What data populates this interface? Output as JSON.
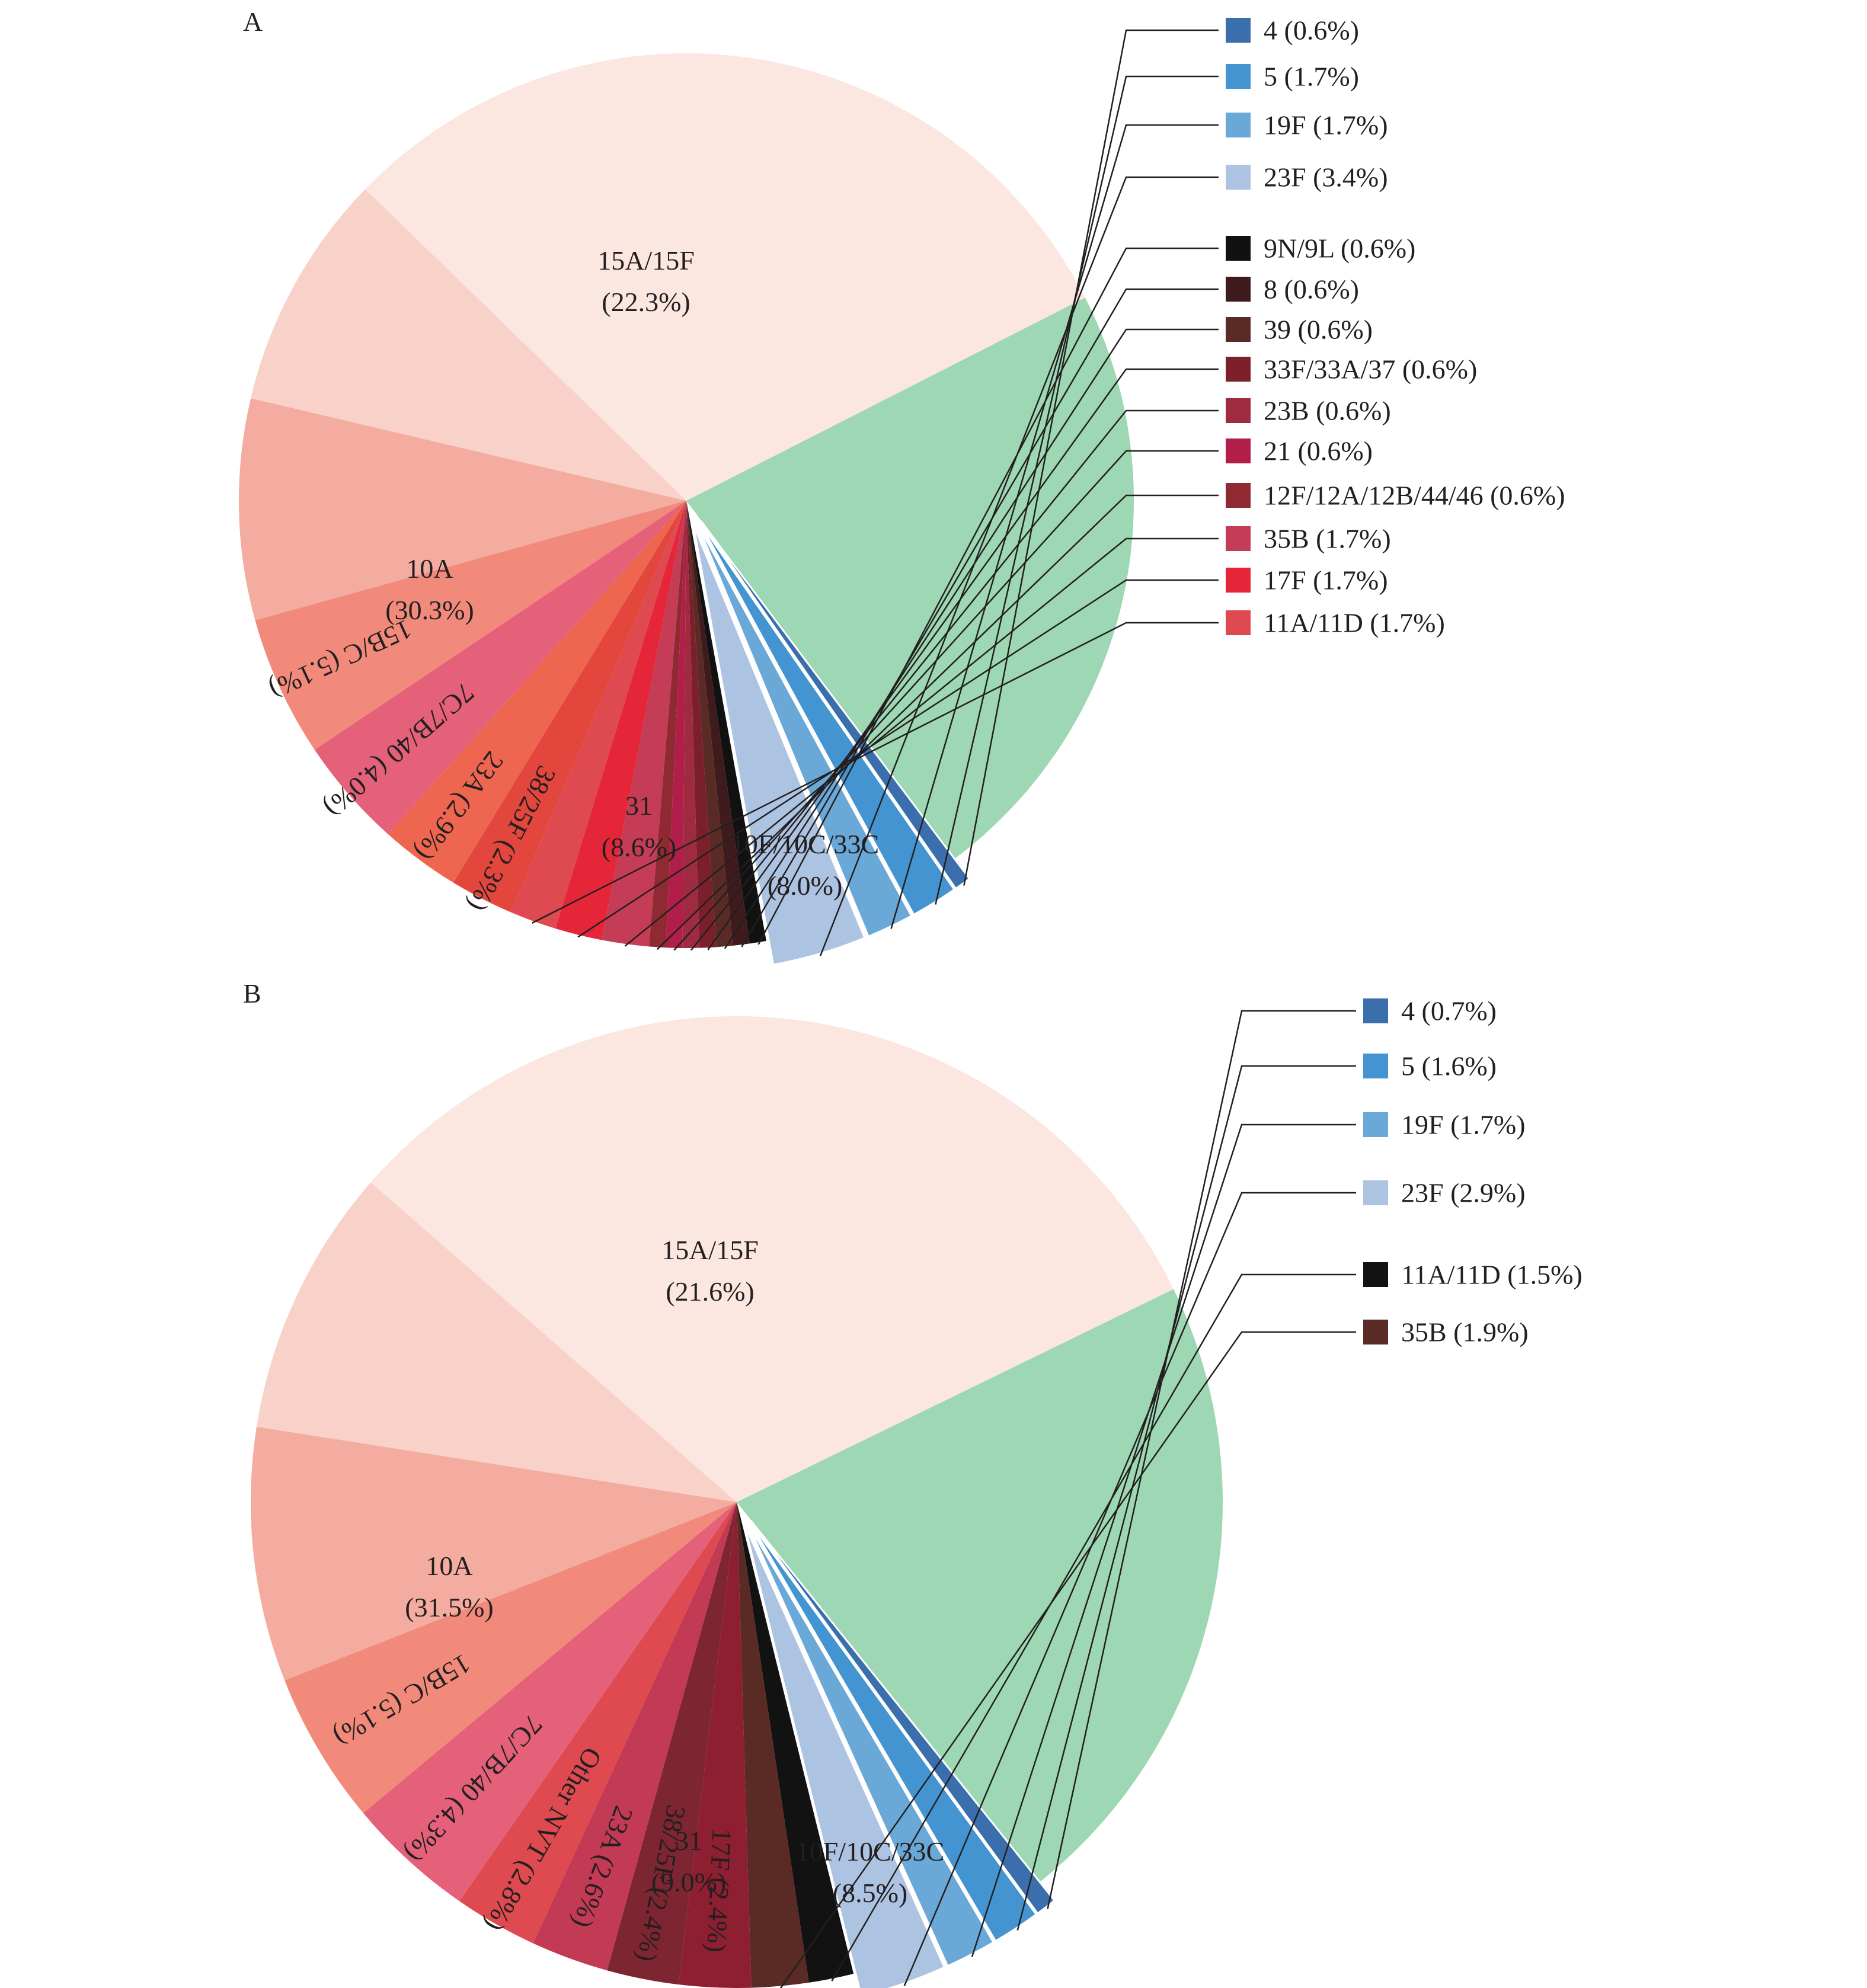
{
  "chart_data": [
    {
      "type": "pie",
      "panel": "A",
      "series": [
        {
          "name": "15A/15F",
          "value": 22.3,
          "label": "15A/15F",
          "pct": "(22.3%)",
          "color": "#9dd7b3",
          "placement": "inside"
        },
        {
          "name": "4",
          "value": 0.6,
          "label": "4 (0.6%)",
          "color": "#3a6ead",
          "placement": "legend",
          "explode": true
        },
        {
          "name": "5",
          "value": 1.7,
          "label": "5 (1.7%)",
          "color": "#4394d0",
          "placement": "legend",
          "explode": true
        },
        {
          "name": "19F",
          "value": 1.7,
          "label": "19F (1.7%)",
          "color": "#6aa8d8",
          "placement": "legend",
          "explode": true
        },
        {
          "name": "23F",
          "value": 3.4,
          "label": "23F (3.4%)",
          "color": "#adc3e2",
          "placement": "legend",
          "explode": true
        },
        {
          "name": "9N/9L",
          "value": 0.6,
          "label": "9N/9L (0.6%)",
          "color": "#111111",
          "placement": "legend"
        },
        {
          "name": "8",
          "value": 0.6,
          "label": "8 (0.6%)",
          "color": "#3f1b1d",
          "placement": "legend"
        },
        {
          "name": "39",
          "value": 0.6,
          "label": "39 (0.6%)",
          "color": "#5a2a25",
          "placement": "legend"
        },
        {
          "name": "33F/33A/37",
          "value": 0.6,
          "label": "33F/33A/37 (0.6%)",
          "color": "#7b1f2b",
          "placement": "legend"
        },
        {
          "name": "23B",
          "value": 0.6,
          "label": "23B (0.6%)",
          "color": "#9e2b3f",
          "placement": "legend"
        },
        {
          "name": "21",
          "value": 0.6,
          "label": "21 (0.6%)",
          "color": "#b21e4a",
          "placement": "legend"
        },
        {
          "name": "12F/12A/12B/44/46",
          "value": 0.6,
          "label": "12F/12A/12B/44/46 (0.6%)",
          "color": "#8f2a33",
          "placement": "legend"
        },
        {
          "name": "35B",
          "value": 1.7,
          "label": "35B (1.7%)",
          "color": "#c43c55",
          "placement": "legend"
        },
        {
          "name": "17F",
          "value": 1.7,
          "label": "17F (1.7%)",
          "color": "#e42638",
          "placement": "legend"
        },
        {
          "name": "11A/11D",
          "value": 1.7,
          "label": "11A/11D (1.7%)",
          "color": "#de4a4f",
          "placement": "legend"
        },
        {
          "name": "38/25F",
          "value": 2.3,
          "label": "38/25F (2.3%)",
          "color": "#e2463c",
          "placement": "inside-rotated"
        },
        {
          "name": "23A",
          "value": 2.9,
          "label": "23A (2.9%)",
          "color": "#ee6650",
          "placement": "inside-rotated"
        },
        {
          "name": "7C/7B/40",
          "value": 4.0,
          "label": "7C/7B/40 (4.0%)",
          "color": "#e5617a",
          "placement": "inside-rotated"
        },
        {
          "name": "15B/C",
          "value": 5.1,
          "label": "15B/C (5.1%)",
          "color": "#f18a7b",
          "placement": "inside-rotated"
        },
        {
          "name": "10F/10C/33C",
          "value": 8.0,
          "label": "10F/10C/33C",
          "pct": "(8.0%)",
          "color": "#f4aba0",
          "placement": "inside"
        },
        {
          "name": "31",
          "value": 8.6,
          "label": "31",
          "pct": "(8.6%)",
          "color": "#f8d2c9",
          "placement": "inside"
        },
        {
          "name": "10A",
          "value": 30.3,
          "label": "10A",
          "pct": "(30.3%)",
          "color": "#fbe6e0",
          "placement": "inside"
        }
      ]
    },
    {
      "type": "pie",
      "panel": "B",
      "series": [
        {
          "name": "15A/15F",
          "value": 21.6,
          "label": "15A/15F",
          "pct": "(21.6%)",
          "color": "#9dd7b3",
          "placement": "inside"
        },
        {
          "name": "4",
          "value": 0.7,
          "label": "4 (0.7%)",
          "color": "#3a6ead",
          "placement": "legend",
          "explode": true
        },
        {
          "name": "5",
          "value": 1.6,
          "label": "5 (1.6%)",
          "color": "#4394d0",
          "placement": "legend",
          "explode": true
        },
        {
          "name": "19F",
          "value": 1.7,
          "label": "19F (1.7%)",
          "color": "#6aa8d8",
          "placement": "legend",
          "explode": true
        },
        {
          "name": "23F",
          "value": 2.9,
          "label": "23F (2.9%)",
          "color": "#adc3e2",
          "placement": "legend",
          "explode": true
        },
        {
          "name": "11A/11D",
          "value": 1.5,
          "label": "11A/11D (1.5%)",
          "color": "#121212",
          "placement": "legend"
        },
        {
          "name": "35B",
          "value": 1.9,
          "label": "35B (1.9%)",
          "color": "#5a2a25",
          "placement": "legend"
        },
        {
          "name": "17F",
          "value": 2.4,
          "label": "17F (2.4%)",
          "color": "#8e1f31",
          "placement": "inside-rotated"
        },
        {
          "name": "38/25F",
          "value": 2.4,
          "label": "38/25F (2.4%)",
          "color": "#7d2530",
          "placement": "inside-rotated"
        },
        {
          "name": "23A",
          "value": 2.6,
          "label": "23A (2.6%)",
          "color": "#c23a53",
          "placement": "inside-rotated"
        },
        {
          "name": "Other NVT",
          "value": 2.8,
          "label": "Other NVT (2.8%)",
          "color": "#de4a4f",
          "placement": "inside-rotated"
        },
        {
          "name": "7C/7B/40",
          "value": 4.3,
          "label": "7C/7B/40 (4.3%)",
          "color": "#e5617a",
          "placement": "inside-rotated"
        },
        {
          "name": "15B/C",
          "value": 5.1,
          "label": "15B/C (5.1%)",
          "color": "#f18a7b",
          "placement": "inside-rotated"
        },
        {
          "name": "10F/10C/33C",
          "value": 8.5,
          "label": "10F/10C/33C",
          "pct": "(8.5%)",
          "color": "#f4aba0",
          "placement": "inside"
        },
        {
          "name": "31",
          "value": 9.0,
          "label": "31",
          "pct": "(9.0%)",
          "color": "#f8d2c9",
          "placement": "inside"
        },
        {
          "name": "10A",
          "value": 31.5,
          "label": "10A",
          "pct": "(31.5%)",
          "color": "#fbe6e0",
          "placement": "inside"
        }
      ]
    }
  ]
}
